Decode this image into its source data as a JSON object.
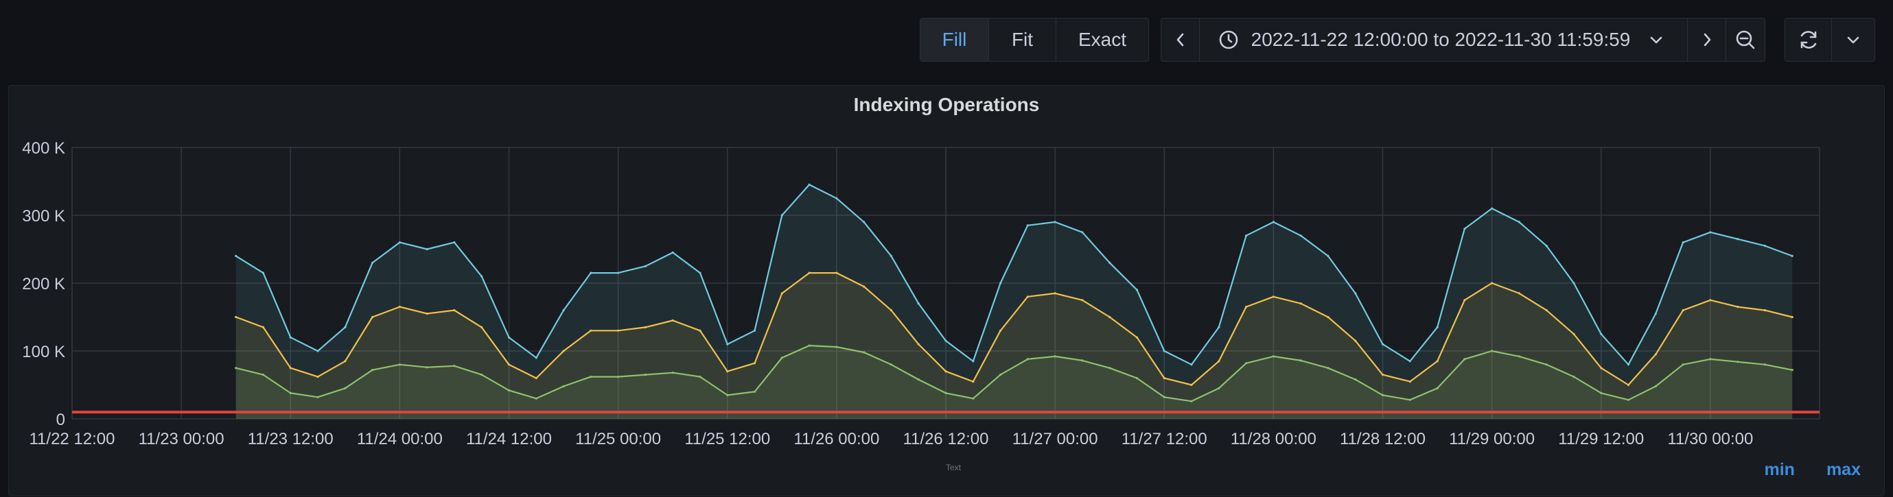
{
  "toolbar": {
    "fill_label": "Fill",
    "fit_label": "Fit",
    "exact_label": "Exact",
    "time_range": "2022-11-22 12:00:00 to 2022-11-30 11:59:59"
  },
  "panel": {
    "title": "Indexing Operations",
    "note": "Text",
    "legend_min": "min",
    "legend_max": "max"
  },
  "colors": {
    "blue": "#6fcbe0",
    "yellow": "#f2c04a",
    "green": "#8ec16b",
    "red": "#e0433f",
    "grid": "#34373d",
    "text": "#ccccdc"
  },
  "chart_data": {
    "type": "area",
    "title": "Indexing Operations",
    "xlabel": "",
    "ylabel": "",
    "ylim": [
      0,
      400000
    ],
    "y_ticks": [
      0,
      100000,
      200000,
      300000,
      400000
    ],
    "y_tick_labels": [
      "0",
      "100 K",
      "200 K",
      "300 K",
      "400 K"
    ],
    "x_range": [
      "2022-11-22 12:00",
      "2022-11-30 12:00"
    ],
    "x_ticks": [
      "2022-11-22 12:00",
      "2022-11-23 00:00",
      "2022-11-23 12:00",
      "2022-11-24 00:00",
      "2022-11-24 12:00",
      "2022-11-25 00:00",
      "2022-11-25 12:00",
      "2022-11-26 00:00",
      "2022-11-26 12:00",
      "2022-11-27 00:00",
      "2022-11-27 12:00",
      "2022-11-28 00:00",
      "2022-11-28 12:00",
      "2022-11-29 00:00",
      "2022-11-29 12:00",
      "2022-11-30 00:00"
    ],
    "x_tick_labels": [
      "11/22 12:00",
      "11/23 00:00",
      "11/23 12:00",
      "11/24 00:00",
      "11/24 12:00",
      "11/25 00:00",
      "11/25 12:00",
      "11/26 00:00",
      "11/26 12:00",
      "11/27 00:00",
      "11/27 12:00",
      "11/28 00:00",
      "11/28 12:00",
      "11/29 00:00",
      "11/29 12:00",
      "11/30 00:00"
    ],
    "grid": true,
    "series": [
      {
        "color": "#6fcbe0",
        "x": [
          "2022-11-23 06:00",
          "2022-11-23 09:00",
          "2022-11-23 12:00",
          "2022-11-23 15:00",
          "2022-11-23 18:00",
          "2022-11-23 21:00",
          "2022-11-24 00:00",
          "2022-11-24 03:00",
          "2022-11-24 06:00",
          "2022-11-24 09:00",
          "2022-11-24 12:00",
          "2022-11-24 15:00",
          "2022-11-24 18:00",
          "2022-11-24 21:00",
          "2022-11-25 00:00",
          "2022-11-25 03:00",
          "2022-11-25 06:00",
          "2022-11-25 09:00",
          "2022-11-25 12:00",
          "2022-11-25 15:00",
          "2022-11-25 18:00",
          "2022-11-25 21:00",
          "2022-11-26 00:00",
          "2022-11-26 03:00",
          "2022-11-26 06:00",
          "2022-11-26 09:00",
          "2022-11-26 12:00",
          "2022-11-26 15:00",
          "2022-11-26 18:00",
          "2022-11-26 21:00",
          "2022-11-27 00:00",
          "2022-11-27 03:00",
          "2022-11-27 06:00",
          "2022-11-27 09:00",
          "2022-11-27 12:00",
          "2022-11-27 15:00",
          "2022-11-27 18:00",
          "2022-11-27 21:00",
          "2022-11-28 00:00",
          "2022-11-28 03:00",
          "2022-11-28 06:00",
          "2022-11-28 09:00",
          "2022-11-28 12:00",
          "2022-11-28 15:00",
          "2022-11-28 18:00",
          "2022-11-28 21:00",
          "2022-11-29 00:00",
          "2022-11-29 03:00",
          "2022-11-29 06:00",
          "2022-11-29 09:00",
          "2022-11-29 12:00",
          "2022-11-29 15:00",
          "2022-11-29 18:00",
          "2022-11-29 21:00",
          "2022-11-30 00:00",
          "2022-11-30 03:00",
          "2022-11-30 06:00",
          "2022-11-30 09:00"
        ],
        "values": [
          240000,
          215000,
          120000,
          100000,
          135000,
          230000,
          260000,
          250000,
          260000,
          210000,
          120000,
          90000,
          160000,
          215000,
          215000,
          225000,
          245000,
          215000,
          110000,
          130000,
          300000,
          345000,
          325000,
          290000,
          240000,
          170000,
          115000,
          85000,
          200000,
          285000,
          290000,
          275000,
          230000,
          190000,
          100000,
          80000,
          135000,
          270000,
          290000,
          270000,
          240000,
          185000,
          110000,
          85000,
          135000,
          280000,
          310000,
          290000,
          255000,
          200000,
          125000,
          80000,
          155000,
          260000,
          275000,
          265000,
          255000,
          240000
        ]
      },
      {
        "color": "#f2c04a",
        "x": [
          "2022-11-23 06:00",
          "2022-11-23 09:00",
          "2022-11-23 12:00",
          "2022-11-23 15:00",
          "2022-11-23 18:00",
          "2022-11-23 21:00",
          "2022-11-24 00:00",
          "2022-11-24 03:00",
          "2022-11-24 06:00",
          "2022-11-24 09:00",
          "2022-11-24 12:00",
          "2022-11-24 15:00",
          "2022-11-24 18:00",
          "2022-11-24 21:00",
          "2022-11-25 00:00",
          "2022-11-25 03:00",
          "2022-11-25 06:00",
          "2022-11-25 09:00",
          "2022-11-25 12:00",
          "2022-11-25 15:00",
          "2022-11-25 18:00",
          "2022-11-25 21:00",
          "2022-11-26 00:00",
          "2022-11-26 03:00",
          "2022-11-26 06:00",
          "2022-11-26 09:00",
          "2022-11-26 12:00",
          "2022-11-26 15:00",
          "2022-11-26 18:00",
          "2022-11-26 21:00",
          "2022-11-27 00:00",
          "2022-11-27 03:00",
          "2022-11-27 06:00",
          "2022-11-27 09:00",
          "2022-11-27 12:00",
          "2022-11-27 15:00",
          "2022-11-27 18:00",
          "2022-11-27 21:00",
          "2022-11-28 00:00",
          "2022-11-28 03:00",
          "2022-11-28 06:00",
          "2022-11-28 09:00",
          "2022-11-28 12:00",
          "2022-11-28 15:00",
          "2022-11-28 18:00",
          "2022-11-28 21:00",
          "2022-11-29 00:00",
          "2022-11-29 03:00",
          "2022-11-29 06:00",
          "2022-11-29 09:00",
          "2022-11-29 12:00",
          "2022-11-29 15:00",
          "2022-11-29 18:00",
          "2022-11-29 21:00",
          "2022-11-30 00:00",
          "2022-11-30 03:00",
          "2022-11-30 06:00",
          "2022-11-30 09:00"
        ],
        "values": [
          150000,
          135000,
          75000,
          62000,
          85000,
          150000,
          165000,
          155000,
          160000,
          135000,
          80000,
          60000,
          100000,
          130000,
          130000,
          135000,
          145000,
          130000,
          70000,
          82000,
          185000,
          215000,
          215000,
          195000,
          160000,
          110000,
          70000,
          55000,
          130000,
          180000,
          185000,
          175000,
          150000,
          120000,
          60000,
          50000,
          85000,
          165000,
          180000,
          170000,
          150000,
          115000,
          65000,
          55000,
          85000,
          175000,
          200000,
          185000,
          160000,
          125000,
          75000,
          50000,
          95000,
          160000,
          175000,
          165000,
          160000,
          150000
        ]
      },
      {
        "color": "#8ec16b",
        "x": [
          "2022-11-23 06:00",
          "2022-11-23 09:00",
          "2022-11-23 12:00",
          "2022-11-23 15:00",
          "2022-11-23 18:00",
          "2022-11-23 21:00",
          "2022-11-24 00:00",
          "2022-11-24 03:00",
          "2022-11-24 06:00",
          "2022-11-24 09:00",
          "2022-11-24 12:00",
          "2022-11-24 15:00",
          "2022-11-24 18:00",
          "2022-11-24 21:00",
          "2022-11-25 00:00",
          "2022-11-25 03:00",
          "2022-11-25 06:00",
          "2022-11-25 09:00",
          "2022-11-25 12:00",
          "2022-11-25 15:00",
          "2022-11-25 18:00",
          "2022-11-25 21:00",
          "2022-11-26 00:00",
          "2022-11-26 03:00",
          "2022-11-26 06:00",
          "2022-11-26 09:00",
          "2022-11-26 12:00",
          "2022-11-26 15:00",
          "2022-11-26 18:00",
          "2022-11-26 21:00",
          "2022-11-27 00:00",
          "2022-11-27 03:00",
          "2022-11-27 06:00",
          "2022-11-27 09:00",
          "2022-11-27 12:00",
          "2022-11-27 15:00",
          "2022-11-27 18:00",
          "2022-11-27 21:00",
          "2022-11-28 00:00",
          "2022-11-28 03:00",
          "2022-11-28 06:00",
          "2022-11-28 09:00",
          "2022-11-28 12:00",
          "2022-11-28 15:00",
          "2022-11-28 18:00",
          "2022-11-28 21:00",
          "2022-11-29 00:00",
          "2022-11-29 03:00",
          "2022-11-29 06:00",
          "2022-11-29 09:00",
          "2022-11-29 12:00",
          "2022-11-29 15:00",
          "2022-11-29 18:00",
          "2022-11-29 21:00",
          "2022-11-30 00:00",
          "2022-11-30 03:00",
          "2022-11-30 06:00",
          "2022-11-30 09:00"
        ],
        "values": [
          75000,
          65000,
          38000,
          32000,
          45000,
          72000,
          80000,
          76000,
          78000,
          65000,
          42000,
          30000,
          48000,
          62000,
          62000,
          65000,
          68000,
          62000,
          35000,
          40000,
          90000,
          108000,
          106000,
          98000,
          80000,
          58000,
          38000,
          30000,
          65000,
          88000,
          92000,
          86000,
          75000,
          60000,
          32000,
          26000,
          45000,
          82000,
          92000,
          86000,
          75000,
          58000,
          35000,
          28000,
          45000,
          88000,
          100000,
          92000,
          80000,
          62000,
          38000,
          28000,
          48000,
          80000,
          88000,
          84000,
          80000,
          72000
        ]
      },
      {
        "color": "#e0433f",
        "x": [
          "2022-11-22 12:00",
          "2022-11-30 12:00"
        ],
        "values": [
          10000,
          10000
        ]
      }
    ]
  }
}
